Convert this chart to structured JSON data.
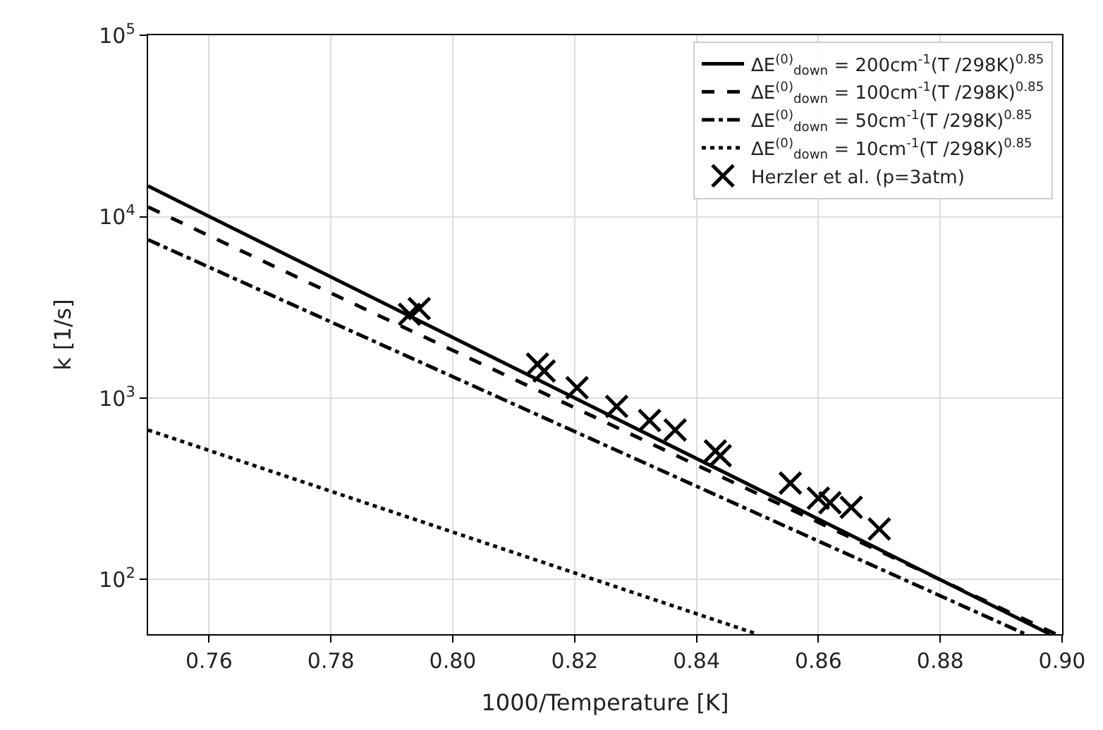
{
  "chart_data": {
    "type": "line",
    "xlabel": "1000/Temperature [K]",
    "ylabel": "k [1/s]",
    "log": "y",
    "grid": true,
    "legend": "top right",
    "xlim": [
      0.75,
      0.9
    ],
    "xticks": [
      0.76,
      0.78,
      {
        "value": 0.8,
        "label": "0.80"
      },
      0.82,
      0.84,
      0.86,
      0.88,
      {
        "value": 0.9,
        "label": "0.90"
      }
    ],
    "ylim": [
      50,
      100000
    ],
    "yticks": [
      {
        "value": 100,
        "label": "10$^{2}$"
      },
      {
        "value": 1000,
        "label": "10$^{3}$"
      },
      {
        "value": 10000,
        "label": "10$^{4}$"
      },
      {
        "value": 100000,
        "label": "10$^{5}$"
      }
    ],
    "series": [
      {
        "name": "ΔE$^{(0)}$$_{down}$ = 200cm$^{-1}$(T /298K)$^{0.85}$",
        "line_style": "solid",
        "marker": "none",
        "color": "#000000",
        "x": [
          0.75,
          0.898
        ],
        "values": [
          14750,
          50
        ]
      },
      {
        "name": "ΔE$^{(0)}$$_{down}$ = 100cm$^{-1}$(T /298K)$^{0.85}$",
        "line_style": "dashed",
        "marker": "none",
        "color": "#000000",
        "x": [
          0.75,
          0.899
        ],
        "values": [
          11300,
          50
        ]
      },
      {
        "name": "ΔE$^{(0)}$$_{down}$ = 50cm$^{-1}$(T /298K)$^{0.85}$",
        "line_style": "dashdot",
        "marker": "none",
        "color": "#000000",
        "x": [
          0.75,
          0.894
        ],
        "values": [
          7460,
          50
        ]
      },
      {
        "name": "ΔE$^{(0)}$$_{down}$ = 10cm$^{-1}$(T /298K)$^{0.85}$",
        "line_style": "dotted",
        "marker": "none",
        "color": "#000000",
        "x": [
          0.75,
          0.85
        ],
        "values": [
          667,
          50
        ]
      },
      {
        "name": "Herzler et al. (p=3atm)",
        "type": "scatter",
        "marker": "cross",
        "color": "#000000",
        "x": [
          0.7929,
          0.7945,
          0.8139,
          0.815,
          0.8204,
          0.8269,
          0.8323,
          0.8365,
          0.8431,
          0.8439,
          0.8554,
          0.86,
          0.8619,
          0.8654,
          0.87
        ],
        "values": [
          2900,
          3110,
          1540,
          1410,
          1140,
          900,
          753,
          667,
          511,
          481,
          340,
          281,
          265,
          250,
          190
        ]
      }
    ]
  }
}
